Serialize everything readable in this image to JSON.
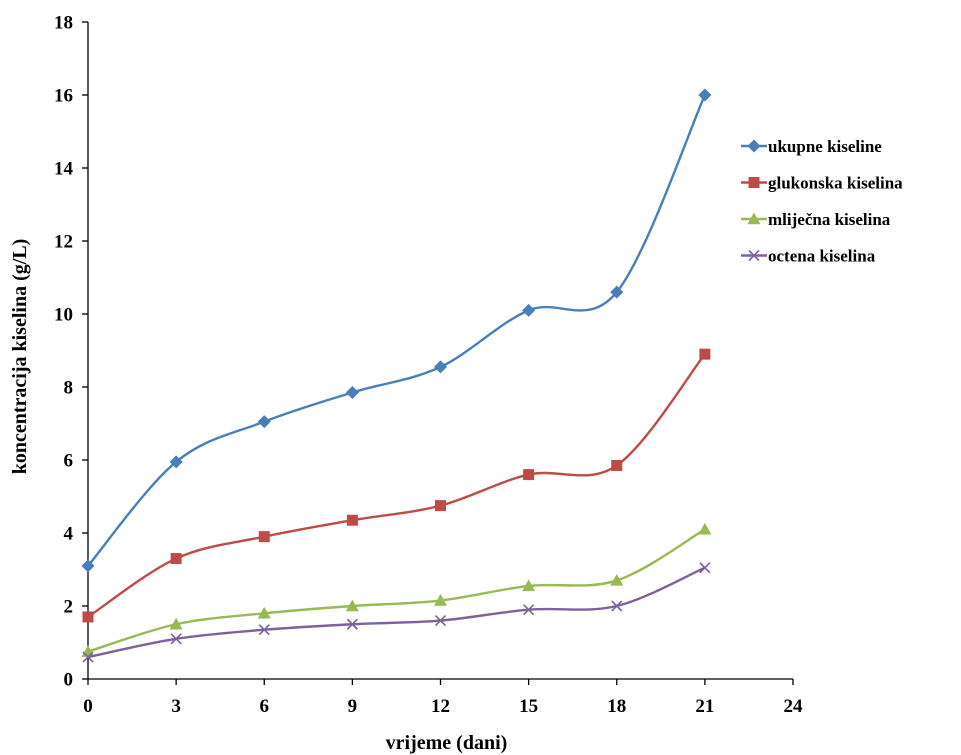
{
  "chart_data": {
    "type": "line",
    "title": "",
    "xlabel": "vrijeme (dani)",
    "ylabel": "koncentracija kiselina (g/L)",
    "xlim": [
      0,
      24
    ],
    "ylim": [
      0,
      18
    ],
    "xticks": [
      0,
      3,
      6,
      9,
      12,
      15,
      18,
      21,
      24
    ],
    "yticks": [
      0,
      2,
      4,
      6,
      8,
      10,
      12,
      14,
      16,
      18
    ],
    "grid": false,
    "smooth": true,
    "legend_position": "right",
    "x": [
      0,
      3,
      6,
      9,
      12,
      15,
      18,
      21
    ],
    "series": [
      {
        "name": "ukupne kiseline",
        "color": "#4a7ebb",
        "marker": "diamond",
        "values": [
          3.1,
          5.95,
          7.05,
          7.85,
          8.55,
          10.1,
          10.6,
          16.0
        ]
      },
      {
        "name": "glukonska kiselina",
        "color": "#be4b48",
        "marker": "square",
        "values": [
          1.7,
          3.3,
          3.9,
          4.35,
          4.75,
          5.6,
          5.85,
          8.9
        ]
      },
      {
        "name": "mliječna kiselina",
        "color": "#98b954",
        "marker": "triangle",
        "values": [
          0.75,
          1.5,
          1.8,
          2.0,
          2.15,
          2.55,
          2.7,
          4.1
        ]
      },
      {
        "name": "octena kiselina",
        "color": "#7d60a0",
        "marker": "x",
        "values": [
          0.6,
          1.1,
          1.35,
          1.5,
          1.6,
          1.9,
          2.0,
          3.05
        ]
      }
    ]
  }
}
